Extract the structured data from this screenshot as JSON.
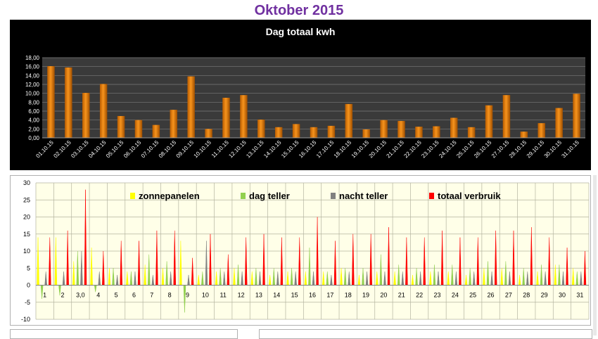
{
  "page": {
    "title": "Oktober 2015"
  },
  "colors": {
    "title": "#7030a0",
    "bar_fill": "#f7941d",
    "chart_bg": "#000000",
    "plot_bg": "#3a3a3a",
    "zonnepanelen": "#ffff00",
    "dag_teller": "#92d050",
    "nacht_teller": "#808080",
    "totaal_verbruik": "#ff0000",
    "plot2_bg": "#ffffe8",
    "grid2": "#b4b4a0"
  },
  "chart_data": [
    {
      "type": "bar",
      "title": "Dag totaal kwh",
      "categories": [
        "01.10.15",
        "02.10.15",
        "03.10.15",
        "04.10.15",
        "05.10.15",
        "06.10.15",
        "07.10.15",
        "08.10.15",
        "09.10.15",
        "10.10.15",
        "11.10.15",
        "12.10.15",
        "13.10.15",
        "14.10.15",
        "15.10.15",
        "16.10.15",
        "17.10.15",
        "18.10.15",
        "19.10.15",
        "20.10.15",
        "21.10.15",
        "22.10.15",
        "23.10.15",
        "24.10.15",
        "25.10.15",
        "26.10.15",
        "27.10.15",
        "28.10.15",
        "29.10.15",
        "30.10.15",
        "31.10.15"
      ],
      "values": [
        16.1,
        15.8,
        10.1,
        12.1,
        4.9,
        4.0,
        2.9,
        6.3,
        13.8,
        2.0,
        9.0,
        9.6,
        4.1,
        2.4,
        3.1,
        2.4,
        2.7,
        7.6,
        1.9,
        4.0,
        3.8,
        2.5,
        2.6,
        4.5,
        2.4,
        7.3,
        9.6,
        1.4,
        3.3,
        6.7,
        9.9
      ],
      "ylim": [
        0,
        18
      ],
      "yticks": [
        "0,00",
        "2,00",
        "4,00",
        "6,00",
        "8,00",
        "10,00",
        "12,00",
        "14,00",
        "16,00",
        "18,00"
      ],
      "grid": true
    },
    {
      "type": "line",
      "legend_position": "top",
      "categories": [
        "1",
        "2",
        "3,0",
        "4",
        "5",
        "6",
        "7",
        "8",
        "9",
        "10",
        "11",
        "12",
        "13",
        "14",
        "15",
        "16",
        "17",
        "18",
        "19",
        "20",
        "21",
        "22",
        "23",
        "24",
        "25",
        "26",
        "27",
        "28",
        "29",
        "30",
        "31"
      ],
      "ylim": [
        -10,
        30
      ],
      "yticks": [
        "-10",
        "-5",
        "0",
        "5",
        "10",
        "15",
        "20",
        "25",
        "30"
      ],
      "grid": true,
      "series": [
        {
          "name": "zonnepanelen",
          "values": [
            14,
            14,
            7,
            11,
            5,
            4,
            6,
            5,
            13,
            3,
            4,
            5,
            4,
            3,
            4,
            4,
            4,
            5,
            3,
            4,
            4,
            3,
            4,
            4,
            3,
            5,
            5,
            3,
            4,
            6,
            5
          ]
        },
        {
          "name": "dag teller",
          "values": [
            -4,
            -3,
            10,
            -2,
            5,
            4,
            9,
            7,
            -8,
            4,
            5,
            6,
            5,
            5,
            5,
            11,
            4,
            5,
            5,
            9,
            6,
            5,
            6,
            6,
            5,
            7,
            7,
            5,
            6,
            6,
            4
          ]
        },
        {
          "name": "nacht teller",
          "values": [
            4,
            4,
            10,
            4,
            3,
            4,
            3,
            4,
            3,
            13,
            4,
            4,
            4,
            4,
            4,
            4,
            3,
            4,
            4,
            4,
            4,
            4,
            4,
            4,
            4,
            4,
            4,
            4,
            4,
            4,
            4
          ]
        },
        {
          "name": "totaal verbruik",
          "values": [
            14,
            16,
            28,
            10,
            13,
            13,
            16,
            16,
            8,
            15,
            9,
            14,
            15,
            14,
            14,
            20,
            13,
            15,
            15,
            17,
            14,
            14,
            16,
            14,
            14,
            16,
            16,
            17,
            14,
            11,
            10
          ]
        }
      ]
    }
  ]
}
